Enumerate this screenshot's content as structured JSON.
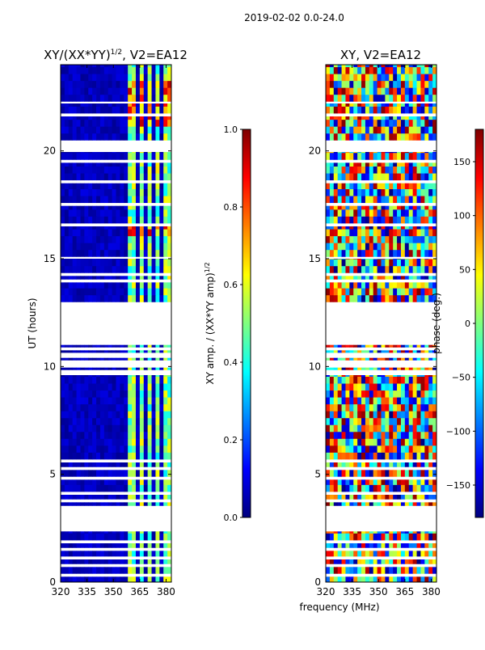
{
  "suptitle": "2019-02-02 0.0-24.0",
  "common_xlabel": "frequency (MHz)",
  "chart_data": [
    {
      "type": "heatmap",
      "title_prefix": "XY/(XX*YY)",
      "title_sup": "1/2",
      "title_suffix": ", V2=EA12",
      "ylabel": "UT (hours)",
      "xlim": [
        320,
        383
      ],
      "ylim": [
        0,
        24
      ],
      "xticks": [
        320,
        335,
        350,
        365,
        380
      ],
      "yticks": [
        0,
        5,
        10,
        15,
        20
      ],
      "colorbar": {
        "label_prefix": "XY amp. / (XX*YY amp)",
        "label_sup": "1/2",
        "range": [
          0.0,
          1.0
        ],
        "ticks": [
          "0.0",
          "0.2",
          "0.4",
          "0.6",
          "0.8",
          "1.0"
        ]
      }
    },
    {
      "type": "heatmap",
      "title": "XY, V2=EA12",
      "xlim": [
        320,
        383
      ],
      "ylim": [
        0,
        24
      ],
      "xticks": [
        320,
        335,
        350,
        365,
        380
      ],
      "yticks": [
        0,
        5,
        10,
        15,
        20
      ],
      "colorbar": {
        "label": "phase (deg.)",
        "range": [
          -180,
          180
        ],
        "ticks": [
          "-150",
          "-100",
          "-50",
          "0",
          "50",
          "100",
          "150"
        ]
      }
    }
  ],
  "data_ut_blocks": [
    [
      0.0,
      0.25
    ],
    [
      0.4,
      0.7
    ],
    [
      0.85,
      1.05
    ],
    [
      1.2,
      1.45
    ],
    [
      1.6,
      1.8
    ],
    [
      1.95,
      2.35
    ],
    [
      3.55,
      3.7
    ],
    [
      3.85,
      4.05
    ],
    [
      4.2,
      4.75
    ],
    [
      4.9,
      5.2
    ],
    [
      5.35,
      5.55
    ],
    [
      5.7,
      9.6
    ],
    [
      9.85,
      9.95
    ],
    [
      10.3,
      10.4
    ],
    [
      10.65,
      10.75
    ],
    [
      10.9,
      11.0
    ],
    [
      13.0,
      13.9
    ],
    [
      14.05,
      14.2
    ],
    [
      14.35,
      15.0
    ],
    [
      15.1,
      16.5
    ],
    [
      16.65,
      17.45
    ],
    [
      17.6,
      18.5
    ],
    [
      18.65,
      19.45
    ],
    [
      19.6,
      19.95
    ],
    [
      20.5,
      21.6
    ],
    [
      21.75,
      22.2
    ],
    [
      22.3,
      24.0
    ]
  ],
  "amp_bright_bands_mhz": [
    [
      359,
      362
    ],
    [
      364,
      367
    ],
    [
      369,
      371
    ],
    [
      374,
      377
    ],
    [
      378,
      382
    ]
  ]
}
